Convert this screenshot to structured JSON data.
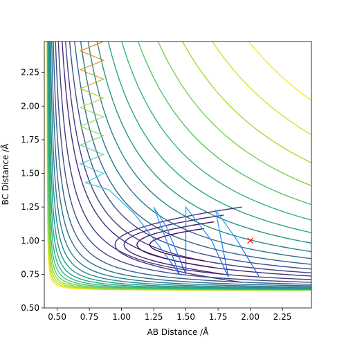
{
  "chart_data": {
    "type": "contour",
    "xlabel": "AB Distance /Å",
    "ylabel": "BC Distance /Å",
    "xlim": [
      0.4,
      2.475
    ],
    "ylim": [
      0.5,
      2.48
    ],
    "xticks": [
      {
        "value": 0.5,
        "label": "0.50"
      },
      {
        "value": 0.75,
        "label": "0.75"
      },
      {
        "value": 1.0,
        "label": "1.00"
      },
      {
        "value": 1.25,
        "label": "1.25"
      },
      {
        "value": 1.5,
        "label": "1.50"
      },
      {
        "value": 1.75,
        "label": "1.75"
      },
      {
        "value": 2.0,
        "label": "2.00"
      },
      {
        "value": 2.25,
        "label": "2.25"
      }
    ],
    "yticks": [
      {
        "value": 0.5,
        "label": "0.50"
      },
      {
        "value": 0.75,
        "label": "0.75"
      },
      {
        "value": 1.0,
        "label": "1.00"
      },
      {
        "value": 1.25,
        "label": "1.25"
      },
      {
        "value": 1.5,
        "label": "1.50"
      },
      {
        "value": 1.75,
        "label": "1.75"
      },
      {
        "value": 2.0,
        "label": "2.00"
      },
      {
        "value": 2.25,
        "label": "2.25"
      }
    ],
    "contour_colors": [
      "#440154",
      "#482878",
      "#3e4989",
      "#31688e",
      "#26828e",
      "#1f9e89",
      "#35b779",
      "#6ece58",
      "#b5de2b",
      "#fde725"
    ],
    "series": [
      {
        "colors": [
          "#e8701a",
          "#b0e040",
          "#40c8e0",
          "#2080f0",
          "#1030c8"
        ],
        "x": [
          0.86,
          0.68,
          0.86,
          0.68,
          0.86,
          0.68,
          0.86,
          0.68,
          0.86,
          0.68,
          0.86,
          0.68,
          0.86,
          0.68,
          0.86,
          0.8,
          0.72,
          0.9,
          1.1,
          1.3,
          1.45,
          1.25,
          1.35,
          1.5,
          1.5,
          1.7,
          1.83,
          1.73,
          1.9,
          2.07
        ],
        "y": [
          2.48,
          2.41,
          2.34,
          2.27,
          2.2,
          2.13,
          2.06,
          1.99,
          1.92,
          1.85,
          1.78,
          1.71,
          1.64,
          1.57,
          1.5,
          1.47,
          1.43,
          1.38,
          1.2,
          0.95,
          0.75,
          1.25,
          1.1,
          0.75,
          1.25,
          1.0,
          0.73,
          1.23,
          1.0,
          0.73
        ]
      }
    ],
    "marker": {
      "x": 2.0,
      "y": 1.0,
      "color": "#ff0000"
    }
  }
}
